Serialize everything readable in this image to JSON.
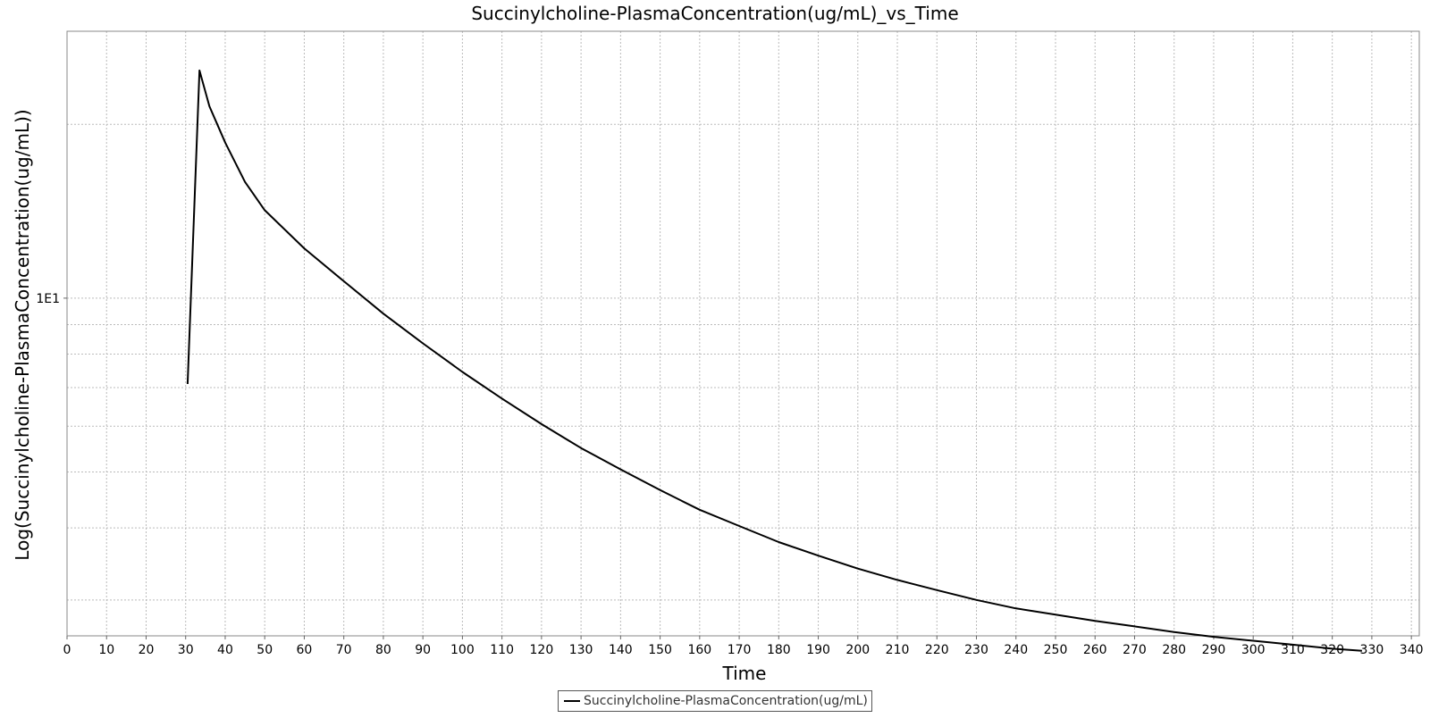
{
  "chart_data": {
    "type": "line",
    "title": "Succinylcholine-PlasmaConcentration(ug/mL)_vs_Time",
    "xlabel": "Time",
    "ylabel": "Log(Succinylcholine-PlasmaConcentration(ug/mL))",
    "y_scale": "log",
    "xlim": [
      0,
      342
    ],
    "ylim": [
      2.6,
      29
    ],
    "x_ticks": [
      0,
      10,
      20,
      30,
      40,
      50,
      60,
      70,
      80,
      90,
      100,
      110,
      120,
      130,
      140,
      150,
      160,
      170,
      180,
      190,
      200,
      210,
      220,
      230,
      240,
      250,
      260,
      270,
      280,
      290,
      300,
      310,
      320,
      330,
      340
    ],
    "y_tick_labels": [
      {
        "value": 10,
        "label": "1E1"
      }
    ],
    "y_grid_values": [
      3,
      4,
      5,
      6,
      7,
      8,
      9,
      10,
      20
    ],
    "grid": true,
    "legend_position": "bottom-center",
    "series": [
      {
        "name": "Succinylcholine-PlasmaConcentration(ug/mL)",
        "color": "#000000",
        "x": [
          30.5,
          33.5,
          36,
          40,
          45,
          50,
          60,
          70,
          80,
          90,
          100,
          110,
          120,
          130,
          140,
          150,
          160,
          170,
          180,
          190,
          200,
          210,
          220,
          230,
          240,
          250,
          260,
          270,
          280,
          290,
          300,
          310,
          320,
          327.5
        ],
        "y": [
          7.1,
          24.8,
          21.5,
          18.6,
          15.9,
          14.2,
          12.2,
          10.7,
          9.4,
          8.35,
          7.45,
          6.7,
          6.05,
          5.5,
          5.05,
          4.65,
          4.3,
          4.03,
          3.78,
          3.58,
          3.4,
          3.25,
          3.12,
          3.0,
          2.9,
          2.83,
          2.76,
          2.7,
          2.64,
          2.59,
          2.55,
          2.51,
          2.47,
          2.45
        ]
      }
    ]
  }
}
